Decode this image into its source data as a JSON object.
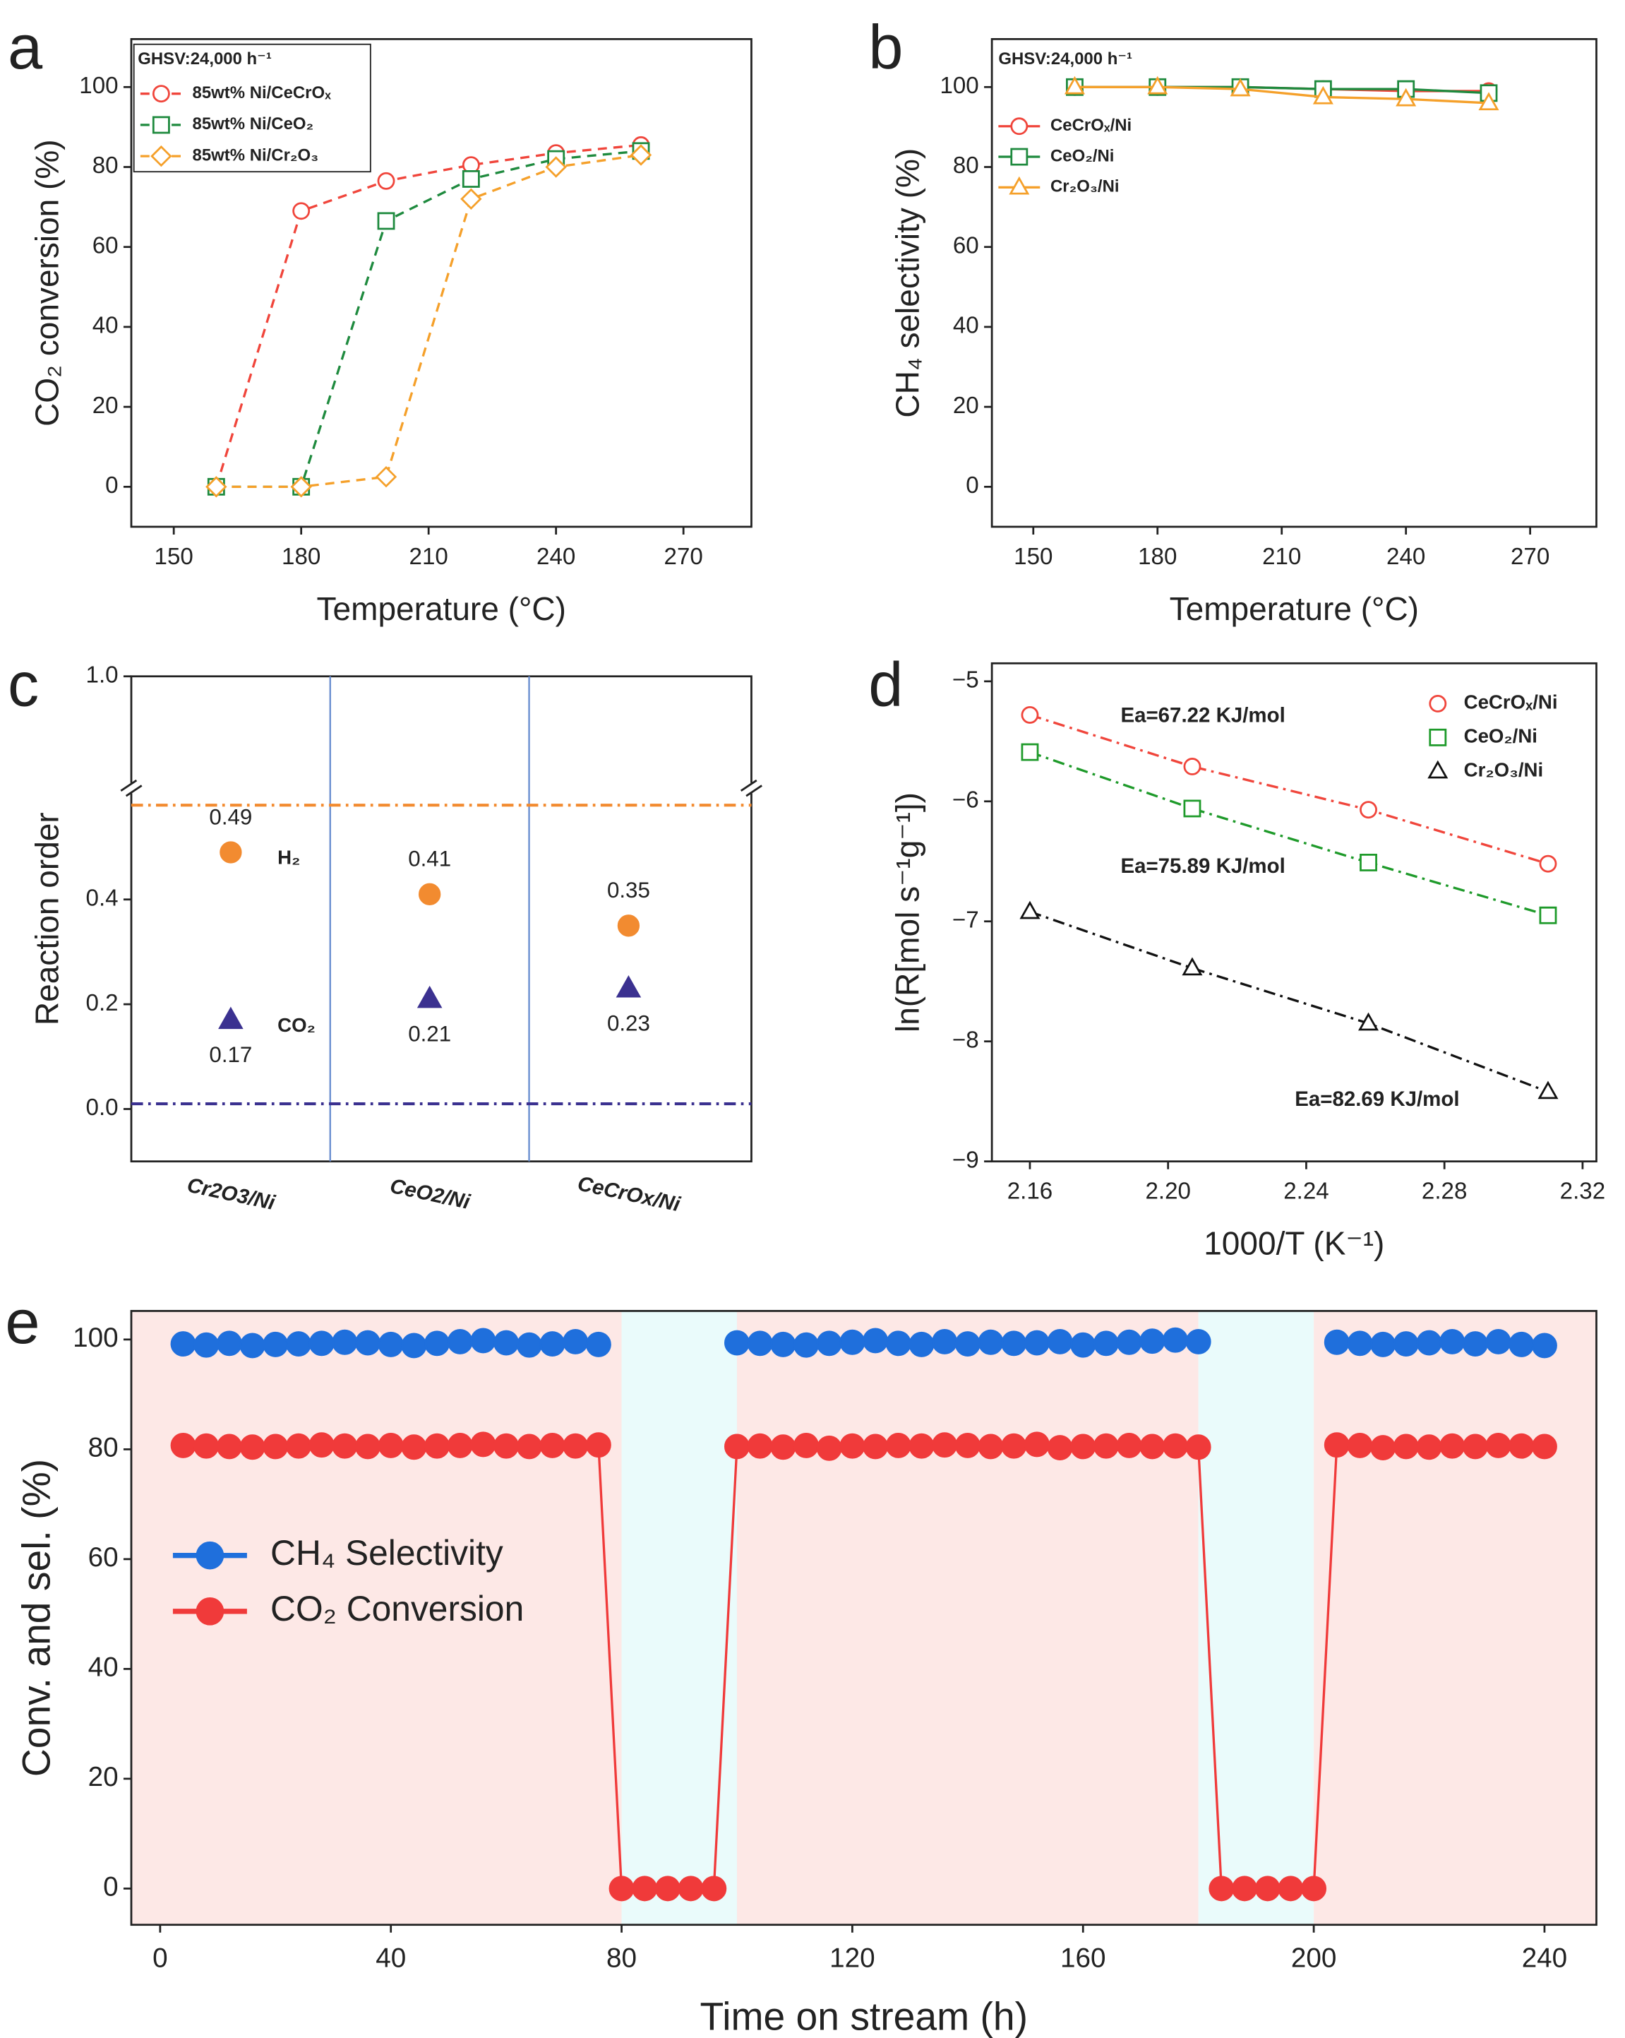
{
  "chart_data": [
    {
      "type": "line",
      "panel_label": "a",
      "legend_title": "GHSV:24,000 h⁻¹",
      "x_label": "Temperature (°C)",
      "y_label": "CO₂ conversion (%)",
      "x": [
        160,
        180,
        200,
        220,
        240,
        260
      ],
      "xlim": [
        140,
        286
      ],
      "xticks": [
        150,
        180,
        210,
        240,
        270
      ],
      "ylim": [
        -10,
        112
      ],
      "yticks": [
        0,
        20,
        40,
        60,
        80,
        100
      ],
      "series": [
        {
          "name": "85wt% Ni/CeCrOₓ",
          "color": "#f0453b",
          "marker": "circle",
          "line_style": "dashed",
          "values": [
            0,
            69,
            76.5,
            80.5,
            83.5,
            85.5
          ]
        },
        {
          "name": "85wt% Ni/CeO₂",
          "color": "#1e8a3e",
          "marker": "square",
          "line_style": "dashed",
          "values": [
            0,
            0,
            66.5,
            77,
            82,
            84
          ]
        },
        {
          "name": "85wt% Ni/Cr₂O₃",
          "color": "#f5a02a",
          "marker": "diamond",
          "line_style": "dashed",
          "values": [
            0,
            0,
            2.5,
            72,
            80,
            83
          ]
        }
      ]
    },
    {
      "type": "line",
      "panel_label": "b",
      "legend_title": "GHSV:24,000 h⁻¹",
      "x_label": "Temperature (°C)",
      "y_label": "CH₄ selectivity (%)",
      "x": [
        160,
        180,
        200,
        220,
        240,
        260
      ],
      "xlim": [
        140,
        286
      ],
      "xticks": [
        150,
        180,
        210,
        240,
        270
      ],
      "ylim": [
        -10,
        112
      ],
      "yticks": [
        0,
        20,
        40,
        60,
        80,
        100
      ],
      "series": [
        {
          "name": "CeCrOₓ/Ni",
          "color": "#f0453b",
          "marker": "circle",
          "line_style": "solid",
          "values": [
            100,
            100,
            100,
            99.5,
            99,
            99
          ]
        },
        {
          "name": "CeO₂/Ni",
          "color": "#1e8a3e",
          "marker": "square",
          "line_style": "solid",
          "values": [
            100,
            100,
            100,
            99.5,
            99.5,
            98.5
          ]
        },
        {
          "name": "Cr₂O₃/Ni",
          "color": "#f5a02a",
          "marker": "triangle",
          "line_style": "solid",
          "values": [
            100,
            100,
            99.5,
            97.5,
            97,
            96
          ]
        }
      ]
    },
    {
      "type": "scatter",
      "panel_label": "c",
      "y_label": "Reaction order",
      "categories": [
        "Cr2O3/Ni",
        "CeO2/Ni",
        "CeCrOx/Ni"
      ],
      "ylim": [
        -0.1,
        0.61
      ],
      "yticks": [
        {
          "value": 0,
          "label": "0.0"
        },
        0.2,
        0.4
      ],
      "upper_ylim": [
        0.9,
        1.0
      ],
      "upper_yticks": [
        {
          "value": 1,
          "label": "1.0"
        }
      ],
      "reference_lines": [
        {
          "value": 0.58,
          "color": "#f28b30"
        },
        {
          "value": 0.01,
          "color": "#3b3190"
        }
      ],
      "series": [
        {
          "name": "H₂",
          "color": "#f28b30",
          "marker": "circle",
          "values": [
            0.49,
            0.41,
            0.35
          ]
        },
        {
          "name": "CO₂",
          "color": "#3b3190",
          "marker": "triangle",
          "values": [
            0.17,
            0.21,
            0.23
          ]
        }
      ]
    },
    {
      "type": "line",
      "panel_label": "d",
      "x_label": "1000/T (K⁻¹)",
      "y_label": "ln(R[mol s⁻¹g⁻¹])",
      "x": [
        2.16,
        2.207,
        2.258,
        2.31
      ],
      "xlim": [
        2.149,
        2.324
      ],
      "xticks": [
        2.16,
        {
          "value": 2.2,
          "label": "2.20"
        },
        2.24,
        2.28,
        2.32
      ],
      "ylim": [
        -9,
        -4.85
      ],
      "yticks": [
        {
          "value": -5,
          "label": "−5"
        },
        {
          "value": -6,
          "label": "−6"
        },
        {
          "value": -7,
          "label": "−7"
        },
        {
          "value": -8,
          "label": "−8"
        },
        {
          "value": -9,
          "label": "−9"
        }
      ],
      "annotations": [
        "Ea=67.22 KJ/mol",
        "Ea=75.89 KJ/mol",
        "Ea=82.69 KJ/mol"
      ],
      "series": [
        {
          "name": "CeCrOₓ/Ni",
          "color": "#f0453b",
          "marker": "circle",
          "line_style": "dashdot",
          "values": [
            -5.28,
            -5.71,
            -6.07,
            -6.52
          ]
        },
        {
          "name": "CeO₂/Ni",
          "color": "#1e9a2a",
          "marker": "square",
          "line_style": "dashdot",
          "values": [
            -5.59,
            -6.06,
            -6.51,
            -6.95
          ]
        },
        {
          "name": "Cr₂O₃/Ni",
          "color": "#111111",
          "marker": "triangle",
          "line_style": "dashdot",
          "values": [
            -6.92,
            -7.39,
            -7.85,
            -8.42
          ]
        }
      ]
    },
    {
      "type": "line",
      "panel_label": "e",
      "x_label": "Time on stream (h)",
      "y_label": "Conv. and sel. (%)",
      "x": [
        4,
        8,
        12,
        16,
        20,
        24,
        28,
        32,
        36,
        40,
        44,
        48,
        52,
        56,
        60,
        64,
        68,
        72,
        76,
        80,
        84,
        88,
        92,
        96,
        100,
        104,
        108,
        112,
        116,
        120,
        124,
        128,
        132,
        136,
        140,
        144,
        148,
        152,
        156,
        160,
        164,
        168,
        172,
        176,
        180,
        184,
        188,
        192,
        196,
        200,
        204,
        208,
        212,
        216,
        220,
        224,
        228,
        232,
        236,
        240
      ],
      "xlim": [
        -5,
        249
      ],
      "xticks": [
        0,
        40,
        80,
        120,
        160,
        200,
        240
      ],
      "ylim": [
        -6.6,
        105.2
      ],
      "yticks": [
        0,
        20,
        40,
        60,
        80,
        100
      ],
      "regions": [
        {
          "from": -5,
          "to": 80,
          "color": "#fde8e6"
        },
        {
          "from": 80,
          "to": 100,
          "color": "#eafbfb"
        },
        {
          "from": 100,
          "to": 180,
          "color": "#fde8e6"
        },
        {
          "from": 180,
          "to": 200,
          "color": "#eafbfb"
        },
        {
          "from": 200,
          "to": 249,
          "color": "#fde8e6"
        }
      ],
      "series": [
        {
          "name": "CH₄ Selectivity",
          "color": "#1f6fdc",
          "marker": "circle",
          "filled": true,
          "line_style": "solid",
          "values": [
            99.2,
            99,
            99.3,
            98.9,
            99.1,
            99.2,
            99.3,
            99.5,
            99.4,
            99.1,
            98.9,
            99.3,
            99.6,
            99.8,
            99.4,
            99,
            99.2,
            99.6,
            99.1,
            null,
            null,
            null,
            null,
            null,
            99.4,
            99.3,
            99.1,
            99,
            99.3,
            99.5,
            99.8,
            99.3,
            99.1,
            99.6,
            99.2,
            99.5,
            99.3,
            99.4,
            99.6,
            99,
            99.3,
            99.5,
            99.7,
            99.9,
            99.6,
            null,
            null,
            null,
            null,
            null,
            99.5,
            99.3,
            99.1,
            99.2,
            99.4,
            99.6,
            99.2,
            99.6,
            99.1,
            98.9
          ]
        },
        {
          "name": "CO₂ Conversion",
          "color": "#f03a3a",
          "marker": "circle",
          "filled": true,
          "line_style": "solid",
          "values": [
            80.7,
            80.6,
            80.5,
            80.4,
            80.5,
            80.6,
            80.8,
            80.6,
            80.5,
            80.7,
            80.4,
            80.6,
            80.7,
            80.9,
            80.6,
            80.5,
            80.7,
            80.6,
            80.8,
            0,
            0,
            0,
            0,
            0,
            80.5,
            80.6,
            80.4,
            80.7,
            80.2,
            80.6,
            80.5,
            80.7,
            80.6,
            80.8,
            80.7,
            80.5,
            80.6,
            80.9,
            80.3,
            80.5,
            80.6,
            80.7,
            80.5,
            80.6,
            80.4,
            0,
            0,
            0,
            0,
            0,
            80.8,
            80.7,
            80.3,
            80.5,
            80.4,
            80.6,
            80.5,
            80.7,
            80.6,
            80.5
          ]
        }
      ]
    }
  ]
}
